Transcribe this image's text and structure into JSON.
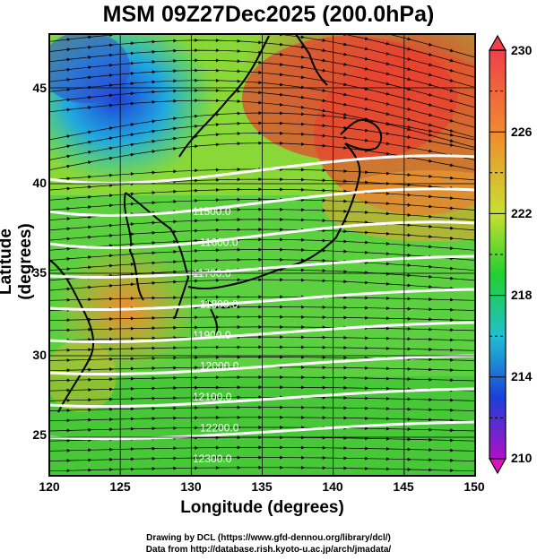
{
  "title": "MSM 09Z27Dec2025 (200.0hPa)",
  "axes": {
    "xlabel": "Longitude (degrees)",
    "ylabel": "Latitude  (degrees)",
    "x_ticks": [
      "120",
      "125",
      "130",
      "135",
      "140",
      "145",
      "150"
    ],
    "y_ticks": [
      "25",
      "30",
      "35",
      "40",
      "45"
    ]
  },
  "colorbar": {
    "ticks": [
      "230",
      "226",
      "222",
      "218",
      "214",
      "210"
    ],
    "min": 210,
    "max": 230
  },
  "contour_labels": [
    "11500.0",
    "11600.0",
    "11700.0",
    "11800.0",
    "11900.0",
    "12000.0",
    "12100.0",
    "12200.0",
    "12300.0"
  ],
  "credits": {
    "line1": "Drawing by DCL (https://www.gfd-dennou.org/library/dcl/)",
    "line2": "Data from http://database.rish.kyoto-u.ac.jp/arch/jmadata/"
  },
  "colors": {
    "warm": "#e83a30",
    "mid": "#7cd42a",
    "cold": "#1e5ad8",
    "contour": "#ffffff",
    "coast": "#000000"
  }
}
